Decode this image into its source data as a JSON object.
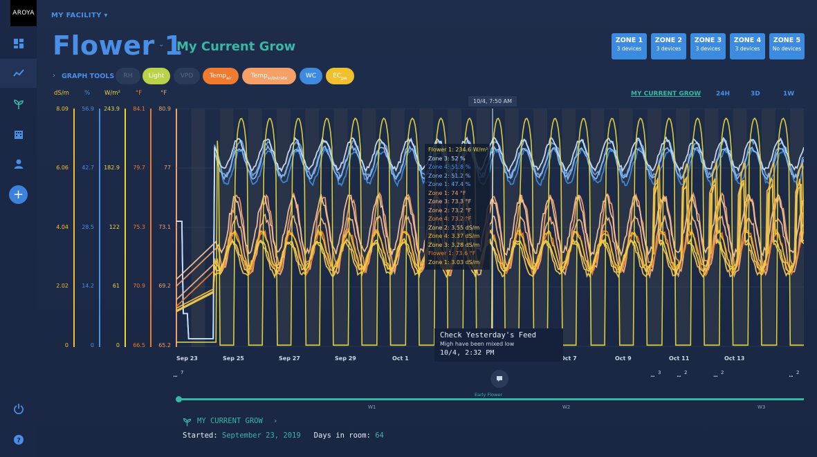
{
  "app": {
    "logo": "AROYA"
  },
  "header": {
    "facility": "MY FACILITY",
    "room": "Flower 1",
    "grow": "My Current Grow"
  },
  "zones": [
    {
      "name": "ZONE 1",
      "devices": "3 devices"
    },
    {
      "name": "ZONE 2",
      "devices": "3 devices"
    },
    {
      "name": "ZONE 3",
      "devices": "3 devices"
    },
    {
      "name": "ZONE 4",
      "devices": "3 devices"
    },
    {
      "name": "ZONE 5",
      "devices": "No devices"
    }
  ],
  "graph_tools": {
    "label": "GRAPH TOOLS",
    "toggles": [
      {
        "label": "RH",
        "sub": "",
        "active": false,
        "color": "#2a3a58"
      },
      {
        "label": "Light",
        "sub": "",
        "active": true,
        "color": "#b9d24a"
      },
      {
        "label": "VPD",
        "sub": "",
        "active": false,
        "color": "#2a3a58"
      },
      {
        "label": "Temp",
        "sub": "air",
        "active": true,
        "color": "#f07b2e"
      },
      {
        "label": "Temp",
        "sub": "substrate",
        "active": true,
        "color": "#f4a066"
      },
      {
        "label": "WC",
        "sub": "",
        "active": true,
        "color": "#3d8be0"
      },
      {
        "label": "EC",
        "sub": "pw",
        "active": true,
        "color": "#f1c02f"
      }
    ]
  },
  "ranges": [
    "MY CURRENT GROW",
    "24H",
    "3D",
    "1W"
  ],
  "axes": [
    {
      "unit": "dS/m",
      "color": "#f1c02f",
      "ticks": [
        "8.09",
        "6.06",
        "4.04",
        "2.02",
        "0"
      ]
    },
    {
      "unit": "%",
      "color": "#4a8fe7",
      "ticks": [
        "56.9",
        "42.7",
        "28.5",
        "14.2",
        "0"
      ]
    },
    {
      "unit": "W/m²",
      "color": "#e8d83a",
      "ticks": [
        "243.9",
        "182.9",
        "122",
        "61",
        "0"
      ]
    },
    {
      "unit": "°F",
      "color": "#f07b2e",
      "ticks": [
        "84.1",
        "79.7",
        "75.3",
        "70.9",
        "66.5"
      ]
    },
    {
      "unit": "°F",
      "color": "#f4a066",
      "ticks": [
        "80.9",
        "77",
        "73.1",
        "69.2",
        "65.2"
      ]
    }
  ],
  "x_labels": [
    "Sep 23",
    "Sep 25",
    "Sep 27",
    "Sep 29",
    "Oct 1",
    "Oct 7",
    "Oct 9",
    "Oct 11",
    "Oct 13"
  ],
  "cursor": {
    "date": "10/4, 7:50 AM"
  },
  "tooltip": [
    {
      "text": "Flower 1: 234.6 W/m²",
      "color": "#e8d83a"
    },
    {
      "text": "Zone 3: 52 %",
      "color": "#cfe0f5"
    },
    {
      "text": "Zone 4: 51.8 %",
      "color": "#4a8fe7"
    },
    {
      "text": "Zone 2: 51.2 %",
      "color": "#8ab8f0"
    },
    {
      "text": "Zone 1: 47.4 %",
      "color": "#6ea6ea"
    },
    {
      "text": "Zone 1: 74 °F",
      "color": "#f4a066"
    },
    {
      "text": "Zone 3: 73.3 °F",
      "color": "#f7c39a"
    },
    {
      "text": "Zone 2: 73.2 °F",
      "color": "#f5b283"
    },
    {
      "text": "Zone 4: 73.2 °F",
      "color": "#f08a45"
    },
    {
      "text": "Zone 2: 3.55 dS/m",
      "color": "#f7d98a"
    },
    {
      "text": "Zone 4: 3.37 dS/m",
      "color": "#f1c02f"
    },
    {
      "text": "Zone 3: 3.28 dS/m",
      "color": "#f5cf5a"
    },
    {
      "text": "Flower 1: 73.6 °F",
      "color": "#f07b2e"
    },
    {
      "text": "Zone 1: 3.03 dS/m",
      "color": "#f3c84a"
    }
  ],
  "note": {
    "title": "Check Yesterday's Feed",
    "body": "Migh have been mixed low",
    "time": "10/4, 2:32 PM"
  },
  "markers": [
    "7",
    "3",
    "2",
    "2",
    "2"
  ],
  "timeline": {
    "phase": "Early Flower",
    "weeks": [
      "W1",
      "W2",
      "W3"
    ]
  },
  "grow_footer": {
    "link": "MY CURRENT GROW",
    "started_label": "Started:",
    "started_value": "September 23, 2019",
    "days_label": "Days in room:",
    "days_value": "64"
  },
  "chart_data": {
    "type": "line",
    "x_range": [
      "Sep 23",
      "Oct 14"
    ],
    "series": [
      {
        "color": "#3d8be0",
        "axis": "%",
        "baseline": 43,
        "amplitude": 4
      },
      {
        "color": "#6ea6ea",
        "axis": "%",
        "baseline": 45,
        "amplitude": 4
      },
      {
        "color": "#8ab8f0",
        "axis": "%",
        "baseline": 44,
        "amplitude": 3.5
      },
      {
        "color": "#cfe0f5",
        "axis": "%",
        "baseline": 46,
        "amplitude": 3.5
      },
      {
        "color": "#f4a066",
        "axis": "°F",
        "baseline": 75,
        "amplitude": 2.5
      },
      {
        "color": "#f5b283",
        "axis": "°F",
        "baseline": 74,
        "amplitude": 2
      },
      {
        "color": "#f7c39a",
        "axis": "°F",
        "baseline": 75.5,
        "amplitude": 2
      },
      {
        "color": "#f07b2e",
        "axis": "°F",
        "baseline": 73.5,
        "amplitude": 1.5
      },
      {
        "color": "#f1c02f",
        "axis": "dS/m",
        "baseline": 3.3,
        "amplitude": 0.6
      },
      {
        "color": "#f5cf5a",
        "axis": "dS/m",
        "baseline": 3.1,
        "amplitude": 0.5
      },
      {
        "color": "#f3c84a",
        "axis": "dS/m",
        "baseline": 3.0,
        "amplitude": 0.55
      },
      {
        "color": "#e8d83a",
        "axis": "W/m²",
        "type": "light",
        "on": 234,
        "off": 0
      }
    ],
    "grid": true
  }
}
